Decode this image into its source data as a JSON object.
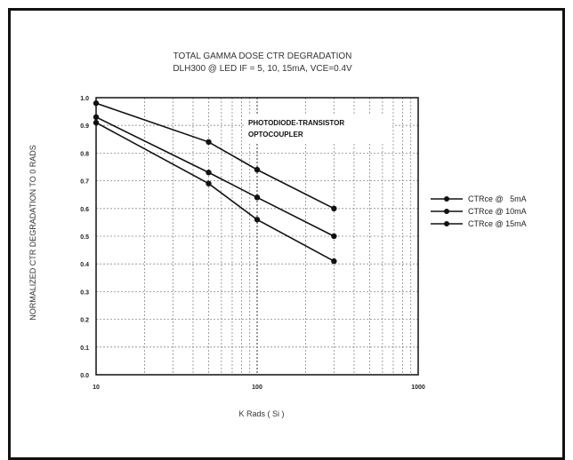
{
  "chart_data": {
    "type": "line",
    "title": "TOTAL GAMMA DOSE CTR DEGRADATION",
    "subtitle": "DLH300 @ LED IF = 5, 10, 15mA, VCE=0.4V",
    "xlabel": "K Rads ( Si )",
    "ylabel": "NORMALIZED CTR DEGRADATION TO 0 RADS",
    "xscale": "log",
    "xlim": [
      10,
      1000
    ],
    "ylim": [
      0.0,
      1.0
    ],
    "x_ticks": [
      "10",
      "100",
      "1000"
    ],
    "y_ticks": [
      "0.0",
      "0.1",
      "0.2",
      "0.3",
      "0.4",
      "0.5",
      "0.6",
      "0.7",
      "0.8",
      "0.9",
      "1.0"
    ],
    "grid": true,
    "legend_position": "right",
    "annotation_lines": [
      "PHOTODIODE-TRANSISTOR",
      "OPTOCOUPLER"
    ],
    "series": [
      {
        "name": "CTRce @   5mA",
        "x": [
          10,
          50,
          100,
          300
        ],
        "values": [
          0.98,
          0.84,
          0.74,
          0.6
        ]
      },
      {
        "name": "CTRce @ 10mA",
        "x": [
          10,
          50,
          100,
          300
        ],
        "values": [
          0.93,
          0.73,
          0.64,
          0.5
        ]
      },
      {
        "name": "CTRce @ 15mA",
        "x": [
          10,
          50,
          100,
          300
        ],
        "values": [
          0.91,
          0.69,
          0.56,
          0.41
        ]
      }
    ]
  }
}
